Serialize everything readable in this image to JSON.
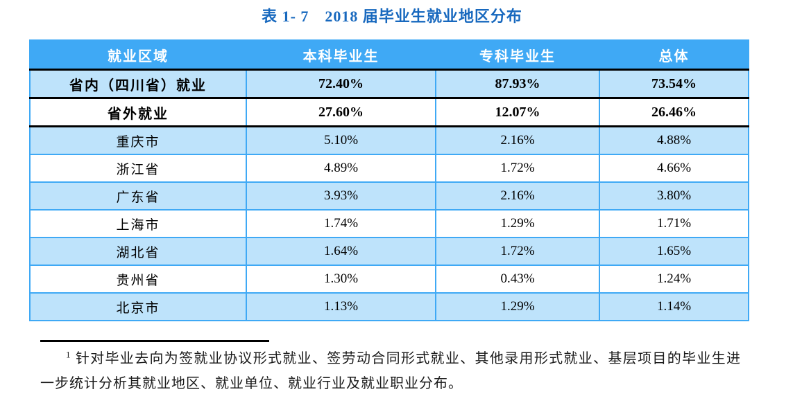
{
  "title": {
    "text": "表 1- 7　2018 届毕业生就业地区分布",
    "color": "#1768BE"
  },
  "table": {
    "columns": [
      "就业区域",
      "本科毕业生",
      "专科毕业生",
      "总体"
    ],
    "rows": [
      {
        "label": "省内（四川省）就业",
        "values": [
          "72.40%",
          "87.93%",
          "73.54%"
        ],
        "emphasis": true
      },
      {
        "label": "省外就业",
        "values": [
          "27.60%",
          "12.07%",
          "26.46%"
        ],
        "emphasis": true
      },
      {
        "label": "重庆市",
        "values": [
          "5.10%",
          "2.16%",
          "4.88%"
        ],
        "emphasis": false
      },
      {
        "label": "浙江省",
        "values": [
          "4.89%",
          "1.72%",
          "4.66%"
        ],
        "emphasis": false
      },
      {
        "label": "广东省",
        "values": [
          "3.93%",
          "2.16%",
          "3.80%"
        ],
        "emphasis": false
      },
      {
        "label": "上海市",
        "values": [
          "1.74%",
          "1.29%",
          "1.71%"
        ],
        "emphasis": false
      },
      {
        "label": "湖北省",
        "values": [
          "1.64%",
          "1.72%",
          "1.65%"
        ],
        "emphasis": false
      },
      {
        "label": "贵州省",
        "values": [
          "1.30%",
          "0.43%",
          "1.24%"
        ],
        "emphasis": false
      },
      {
        "label": "北京市",
        "values": [
          "1.13%",
          "1.29%",
          "1.14%"
        ],
        "emphasis": false
      }
    ],
    "colors": {
      "header_bg": "#3FA9F5",
      "header_text": "#FFFFFF",
      "row_bg": "#FFFFFF",
      "row_alt_bg": "#BEE3FB",
      "border": "#3FA9F5",
      "emphasis_border": "#000000"
    }
  },
  "footnote": {
    "marker": "1",
    "text": "针对毕业去向为签就业协议形式就业、签劳动合同形式就业、其他录用形式就业、基层项目的毕业生进一步统计分析其就业地区、就业单位、就业行业及就业职业分布。"
  }
}
